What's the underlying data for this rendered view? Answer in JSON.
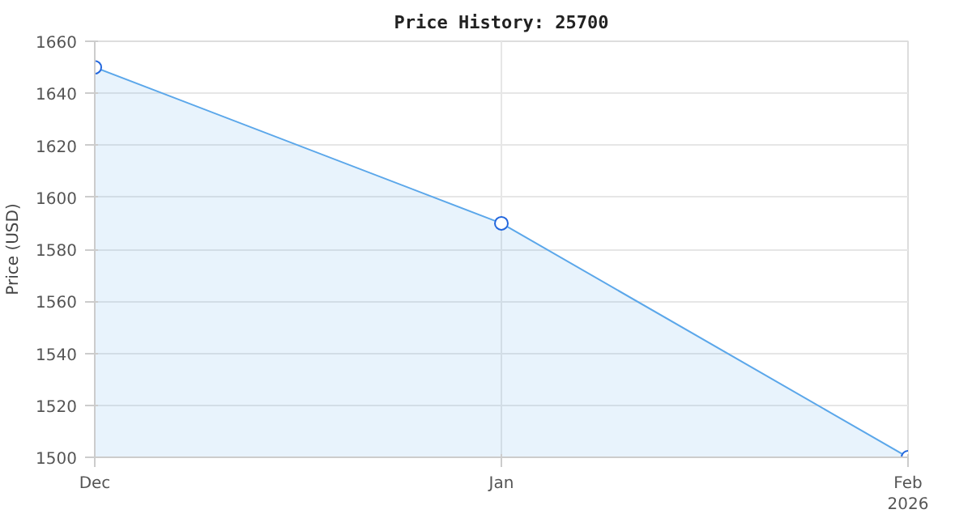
{
  "chart_data": {
    "type": "area",
    "title": "Price History: 25700",
    "ylabel": "Price (USD)",
    "x": [
      "2025-12",
      "2026-01",
      "2026-02"
    ],
    "series": [
      {
        "color": "#5ba7ea",
        "values": [
          1650,
          1590,
          1500
        ]
      }
    ],
    "xlim": [
      "2025-12",
      "2026-02"
    ],
    "xticks": [
      {
        "value": "2025-12",
        "label": "Dec"
      },
      {
        "value": "2026-01",
        "label": "Jan"
      },
      {
        "value": "2026-02",
        "label": "Feb\n2026"
      }
    ],
    "ylim": [
      1500,
      1660
    ],
    "yticks": [
      1500,
      1520,
      1540,
      1560,
      1580,
      1600,
      1620,
      1640,
      1660
    ],
    "grid": true,
    "marker": "circle"
  }
}
